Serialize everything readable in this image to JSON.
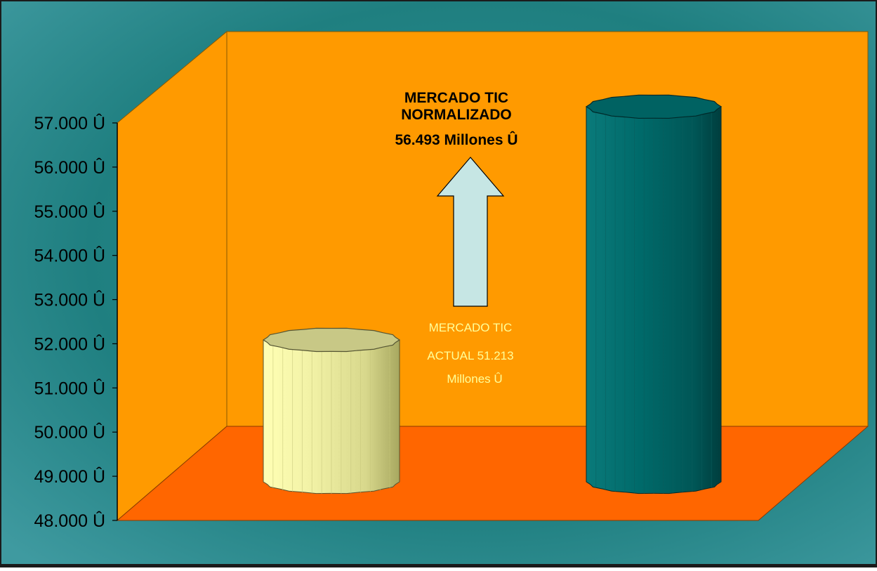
{
  "colors": {
    "background_outer": "#2a8a8c",
    "back_wall": "#ff9a00",
    "side_wall": "#ff9a00",
    "floor": "#ff6600",
    "bar_current": "#e6e696",
    "bar_normalized": "#006666",
    "arrow_fill": "#c6e6e4",
    "annotation_bold": "#000000",
    "annotation_light": "#ffff99"
  },
  "chart_data": {
    "type": "bar",
    "style": "3d-cylinder",
    "ylim": [
      48000,
      57000
    ],
    "yticks": [
      48000,
      49000,
      50000,
      51000,
      52000,
      53000,
      54000,
      55000,
      56000,
      57000
    ],
    "ytick_labels": [
      "48.000 Û",
      "49.000 Û",
      "50.000 Û",
      "51.000 Û",
      "52.000 Û",
      "53.000 Û",
      "54.000 Û",
      "55.000 Û",
      "56.000 Û",
      "57.000 Û"
    ],
    "categories": [
      "",
      ""
    ],
    "values": [
      51213,
      56493
    ],
    "legend": "none",
    "grid": false,
    "arrow": "up",
    "annotations": {
      "normalized": [
        "MERCADO TIC",
        "NORMALIZADO",
        "56.493 Millones Û"
      ],
      "current": [
        "MERCADO TIC",
        "ACTUAL 51.213",
        "Millones Û"
      ]
    }
  }
}
